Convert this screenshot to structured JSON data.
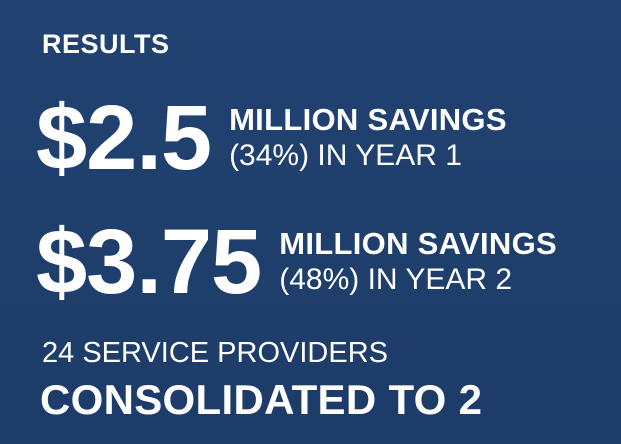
{
  "heading": "RESULTS",
  "metrics": [
    {
      "value": "$2.5",
      "label_strong": "MILLION SAVINGS",
      "label_light": "(34%) IN YEAR 1"
    },
    {
      "value": "$3.75",
      "label_strong": "MILLION SAVINGS",
      "label_light": "(48%) IN YEAR 2"
    }
  ],
  "providers": {
    "line": "24 SERVICE PROVIDERS",
    "headline": "CONSOLIDATED TO 2"
  },
  "colors": {
    "background": "#1f3f6e",
    "text": "#ffffff"
  }
}
